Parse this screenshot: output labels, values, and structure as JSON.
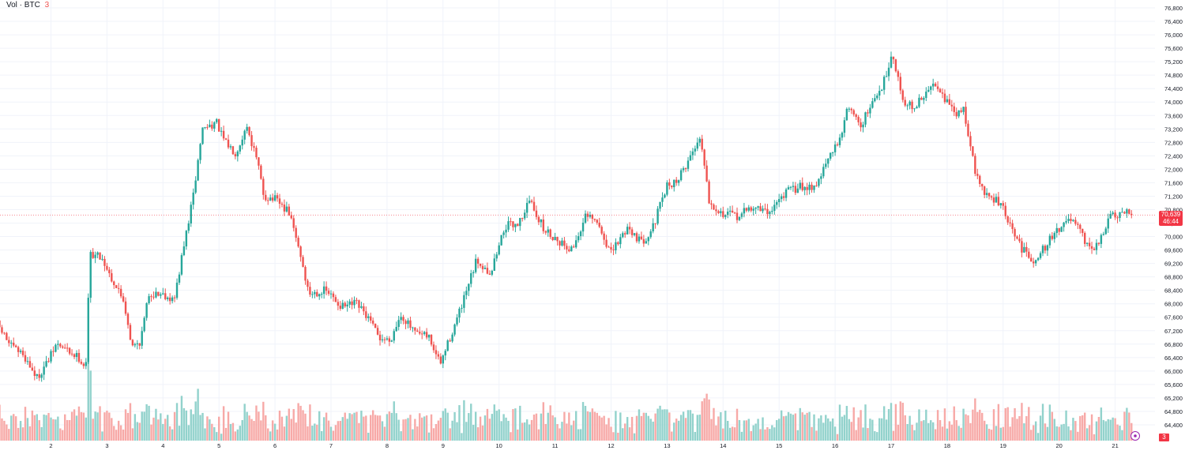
{
  "legend": {
    "label": "Vol · BTC",
    "value": "3"
  },
  "price_tag": {
    "price": "70,639",
    "countdown": "46:44"
  },
  "volume_tag": "3",
  "colors": {
    "up": "#26a69a",
    "down": "#ef5350",
    "up_volume": "#92d2cc",
    "down_volume": "#f7a9a7",
    "grid": "#f0f3fa",
    "last_price_line": "#f23645"
  },
  "chart_data": {
    "type": "candlestick",
    "instrument": "BTC",
    "x_ticks": [
      "2",
      "3",
      "4",
      "5",
      "6",
      "7",
      "8",
      "9",
      "10",
      "11",
      "12",
      "13",
      "14",
      "15",
      "16",
      "17",
      "18",
      "19",
      "20",
      "21"
    ],
    "y_ticks": [
      "76,800",
      "76,400",
      "76,000",
      "75,600",
      "75,200",
      "74,800",
      "74,400",
      "74,000",
      "73,600",
      "73,200",
      "72,800",
      "72,400",
      "72,000",
      "71,600",
      "71,200",
      "70,800",
      "70,400",
      "70,000",
      "69,600",
      "69,200",
      "68,800",
      "68,400",
      "68,000",
      "67,600",
      "67,200",
      "66,800",
      "66,400",
      "66,000",
      "65,600",
      "65,200",
      "64,800",
      "64,400"
    ],
    "y_range": [
      64400,
      76800
    ],
    "last_price": 70639,
    "last_price_label": "70,639",
    "countdown": "46:44",
    "close_path": [
      {
        "day": 1.0,
        "price": 67500
      },
      {
        "day": 1.3,
        "price": 66700
      },
      {
        "day": 1.5,
        "price": 66500
      },
      {
        "day": 1.75,
        "price": 65800
      },
      {
        "day": 1.95,
        "price": 66300
      },
      {
        "day": 2.1,
        "price": 66800
      },
      {
        "day": 2.5,
        "price": 66400
      },
      {
        "day": 2.62,
        "price": 66100
      },
      {
        "day": 2.7,
        "price": 69500
      },
      {
        "day": 2.9,
        "price": 69400
      },
      {
        "day": 3.1,
        "price": 68700
      },
      {
        "day": 3.3,
        "price": 68100
      },
      {
        "day": 3.45,
        "price": 66700
      },
      {
        "day": 3.6,
        "price": 66900
      },
      {
        "day": 3.75,
        "price": 68300
      },
      {
        "day": 4.0,
        "price": 68300
      },
      {
        "day": 4.2,
        "price": 68100
      },
      {
        "day": 4.35,
        "price": 69500
      },
      {
        "day": 4.55,
        "price": 71300
      },
      {
        "day": 4.7,
        "price": 73200
      },
      {
        "day": 4.95,
        "price": 73400
      },
      {
        "day": 5.1,
        "price": 72800
      },
      {
        "day": 5.3,
        "price": 72500
      },
      {
        "day": 5.5,
        "price": 73300
      },
      {
        "day": 5.7,
        "price": 72100
      },
      {
        "day": 5.8,
        "price": 71200
      },
      {
        "day": 6.0,
        "price": 71100
      },
      {
        "day": 6.25,
        "price": 70700
      },
      {
        "day": 6.45,
        "price": 69500
      },
      {
        "day": 6.6,
        "price": 68300
      },
      {
        "day": 6.9,
        "price": 68400
      },
      {
        "day": 7.2,
        "price": 67900
      },
      {
        "day": 7.45,
        "price": 68000
      },
      {
        "day": 7.65,
        "price": 67600
      },
      {
        "day": 7.85,
        "price": 67000
      },
      {
        "day": 8.05,
        "price": 66900
      },
      {
        "day": 8.25,
        "price": 67700
      },
      {
        "day": 8.5,
        "price": 67100
      },
      {
        "day": 8.75,
        "price": 67000
      },
      {
        "day": 8.95,
        "price": 66200
      },
      {
        "day": 9.15,
        "price": 67100
      },
      {
        "day": 9.35,
        "price": 68000
      },
      {
        "day": 9.6,
        "price": 69300
      },
      {
        "day": 9.85,
        "price": 68900
      },
      {
        "day": 10.1,
        "price": 70300
      },
      {
        "day": 10.35,
        "price": 70400
      },
      {
        "day": 10.55,
        "price": 71100
      },
      {
        "day": 10.8,
        "price": 70200
      },
      {
        "day": 11.05,
        "price": 69900
      },
      {
        "day": 11.3,
        "price": 69600
      },
      {
        "day": 11.55,
        "price": 70600
      },
      {
        "day": 11.75,
        "price": 70400
      },
      {
        "day": 12.0,
        "price": 69500
      },
      {
        "day": 12.3,
        "price": 70300
      },
      {
        "day": 12.55,
        "price": 69800
      },
      {
        "day": 12.75,
        "price": 70300
      },
      {
        "day": 13.0,
        "price": 71500
      },
      {
        "day": 13.2,
        "price": 71700
      },
      {
        "day": 13.45,
        "price": 72500
      },
      {
        "day": 13.6,
        "price": 73000
      },
      {
        "day": 13.75,
        "price": 71100
      },
      {
        "day": 13.95,
        "price": 70700
      },
      {
        "day": 14.25,
        "price": 70600
      },
      {
        "day": 14.55,
        "price": 70900
      },
      {
        "day": 14.8,
        "price": 70700
      },
      {
        "day": 15.1,
        "price": 71300
      },
      {
        "day": 15.4,
        "price": 71500
      },
      {
        "day": 15.65,
        "price": 71500
      },
      {
        "day": 15.85,
        "price": 72200
      },
      {
        "day": 16.05,
        "price": 72800
      },
      {
        "day": 16.25,
        "price": 73900
      },
      {
        "day": 16.45,
        "price": 73300
      },
      {
        "day": 16.65,
        "price": 73900
      },
      {
        "day": 16.85,
        "price": 74500
      },
      {
        "day": 17.02,
        "price": 75500
      },
      {
        "day": 17.2,
        "price": 74100
      },
      {
        "day": 17.4,
        "price": 73800
      },
      {
        "day": 17.6,
        "price": 74200
      },
      {
        "day": 17.8,
        "price": 74600
      },
      {
        "day": 18.0,
        "price": 74000
      },
      {
        "day": 18.15,
        "price": 73600
      },
      {
        "day": 18.3,
        "price": 73800
      },
      {
        "day": 18.5,
        "price": 71900
      },
      {
        "day": 18.7,
        "price": 71200
      },
      {
        "day": 18.95,
        "price": 71000
      },
      {
        "day": 19.15,
        "price": 70200
      },
      {
        "day": 19.35,
        "price": 69600
      },
      {
        "day": 19.55,
        "price": 69300
      },
      {
        "day": 19.75,
        "price": 69700
      },
      {
        "day": 19.95,
        "price": 70200
      },
      {
        "day": 20.2,
        "price": 70500
      },
      {
        "day": 20.35,
        "price": 70200
      },
      {
        "day": 20.5,
        "price": 69700
      },
      {
        "day": 20.7,
        "price": 69700
      },
      {
        "day": 20.9,
        "price": 70600
      },
      {
        "day": 21.1,
        "price": 70600
      },
      {
        "day": 21.22,
        "price": 70700
      },
      {
        "day": 21.3,
        "price": 70639
      }
    ]
  }
}
